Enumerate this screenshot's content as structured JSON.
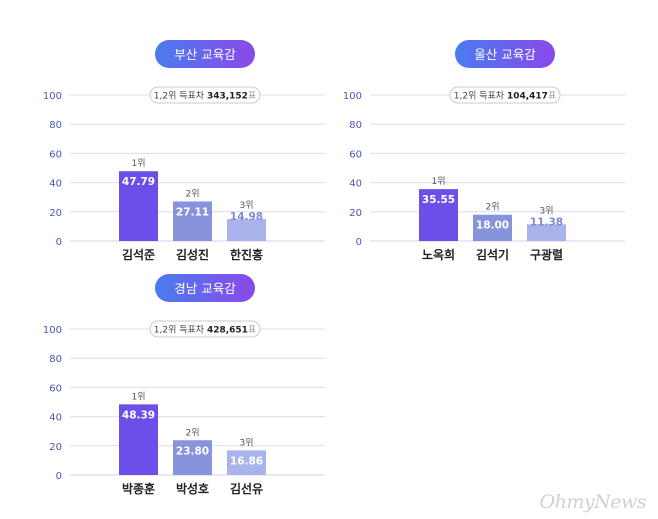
{
  "colors": {
    "pill_start": "#4a7cf0",
    "pill_end": "#8a49ea",
    "bar_first": "#6b4fe8",
    "bar_other": "#8794dc",
    "bar_light": "#a9b3ec",
    "grid": "#dcdcf0",
    "axis_text": "#4a56b3"
  },
  "watermark": "OhmyNews",
  "chart_data": [
    {
      "type": "bar",
      "title": "부산 교육감",
      "gap_label": "1,2위 득표차",
      "gap_value": "343,152",
      "gap_unit": "표",
      "ylim": [
        0,
        100
      ],
      "yticks": [
        "0",
        "20",
        "40",
        "60",
        "80",
        "100"
      ],
      "grid": true,
      "categories": [
        "김석준",
        "김성진",
        "한진홍"
      ],
      "values": [
        47.79,
        27.11,
        14.98
      ],
      "value_labels": [
        "47.79",
        "27.11",
        "14.98"
      ],
      "ranks": [
        "1위",
        "2위",
        "3위"
      ]
    },
    {
      "type": "bar",
      "title": "울산 교육감",
      "gap_label": "1,2위 득표차",
      "gap_value": "104,417",
      "gap_unit": "표",
      "ylim": [
        0,
        100
      ],
      "yticks": [
        "0",
        "20",
        "40",
        "60",
        "80",
        "100"
      ],
      "grid": true,
      "categories": [
        "노옥희",
        "김석기",
        "구광렬"
      ],
      "values": [
        35.55,
        18.0,
        11.38
      ],
      "value_labels": [
        "35.55",
        "18.00",
        "11.38"
      ],
      "ranks": [
        "1위",
        "2위",
        "3위"
      ]
    },
    {
      "type": "bar",
      "title": "경남 교육감",
      "gap_label": "1,2위 득표차",
      "gap_value": "428,651",
      "gap_unit": "표",
      "ylim": [
        0,
        100
      ],
      "yticks": [
        "0",
        "20",
        "40",
        "60",
        "80",
        "100"
      ],
      "grid": true,
      "categories": [
        "박종훈",
        "박성호",
        "김선유"
      ],
      "values": [
        48.39,
        23.8,
        16.86
      ],
      "value_labels": [
        "48.39",
        "23.80",
        "16.86"
      ],
      "ranks": [
        "1위",
        "2위",
        "3위"
      ]
    }
  ]
}
